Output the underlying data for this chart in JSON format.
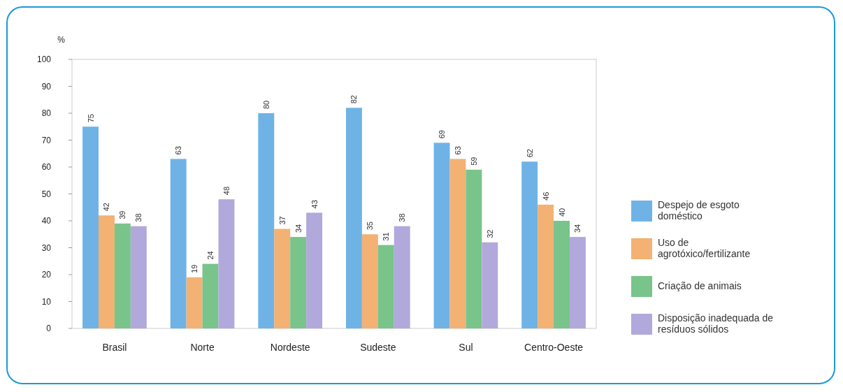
{
  "chart_data": {
    "type": "bar",
    "ylabel": "%",
    "categories": [
      "Brasil",
      "Norte",
      "Nordeste",
      "Sudeste",
      "Sul",
      "Centro-Oeste"
    ],
    "series": [
      {
        "name": "Despejo de esgoto doméstico",
        "color": "#6fb3e6",
        "values": [
          75,
          63,
          80,
          82,
          69,
          62
        ]
      },
      {
        "name": "Uso de agrotóxico/fertilizante",
        "color": "#f3b173",
        "values": [
          42,
          19,
          37,
          35,
          63,
          46
        ]
      },
      {
        "name": "Criação de animais",
        "color": "#78c48a",
        "values": [
          39,
          24,
          34,
          31,
          59,
          40
        ]
      },
      {
        "name": "Disposição inadequada de resíduos sólidos",
        "color": "#b1a9dc",
        "values": [
          38,
          48,
          43,
          38,
          32,
          34
        ]
      }
    ],
    "ylim": [
      0,
      100
    ],
    "yticks": [
      0,
      10,
      20,
      30,
      40,
      50,
      60,
      70,
      80,
      90,
      100
    ],
    "data_labels": true,
    "legend": "right",
    "grid": false
  }
}
